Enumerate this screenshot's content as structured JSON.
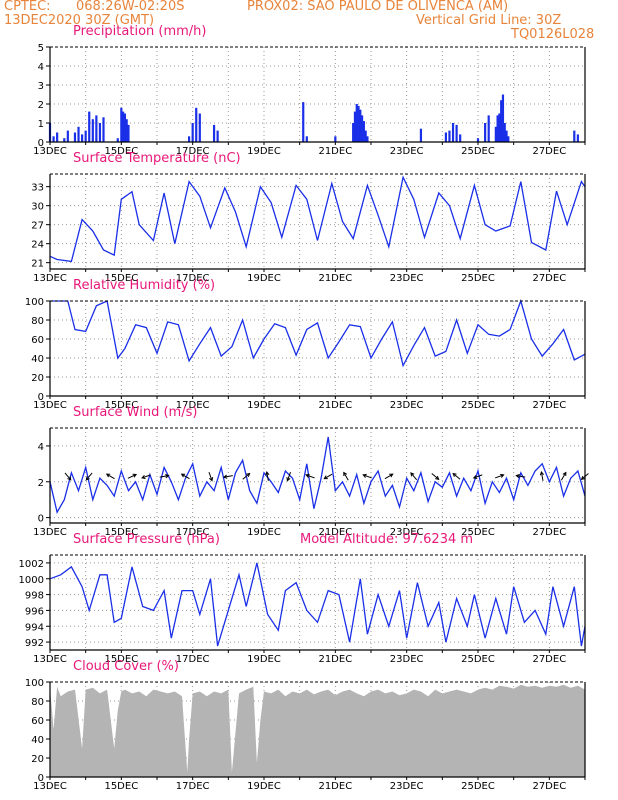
{
  "header": {
    "line1_left": "CPTEC:",
    "line1_coords": "068:26W-02:20S",
    "line1_station": "PROX02: SAO PAULO DE OLIVENCA (AM)",
    "line2_left": "13DEC2020 30Z (GMT)",
    "line2_right": "Vertical Grid Line: 30Z",
    "line3_right": "TQ0126L028",
    "model_altitude": "Model Altitude: 97.6234 m"
  },
  "colors": {
    "header": "#e8843a",
    "title": "#e8187a",
    "series": "#1a2fe8",
    "cloud": "#b4b4b4",
    "grid": "#9a9a9a"
  },
  "chart_data": [
    {
      "type": "bar",
      "title": "Precipitation (mm/h)",
      "x_tick_labels": [
        "13DEC",
        "15DEC",
        "17DEC",
        "19DEC",
        "21DEC",
        "23DEC",
        "25DEC",
        "27DEC"
      ],
      "y_tick_labels": [
        "0",
        "1",
        "2",
        "3",
        "4",
        "5"
      ],
      "ylim": [
        0,
        5
      ],
      "day_range": [
        13,
        28
      ],
      "x": [
        13.0,
        13.1,
        13.2,
        13.4,
        13.5,
        13.7,
        13.8,
        13.9,
        14.0,
        14.1,
        14.2,
        14.3,
        14.4,
        14.5,
        14.9,
        15.0,
        15.05,
        15.1,
        15.15,
        15.2,
        16.9,
        17.0,
        17.1,
        17.2,
        17.6,
        17.7,
        20.1,
        20.2,
        21.0,
        21.5,
        21.55,
        21.6,
        21.65,
        21.7,
        21.75,
        21.8,
        21.85,
        21.9,
        23.4,
        24.1,
        24.2,
        24.3,
        24.4,
        24.5,
        25.0,
        25.2,
        25.3,
        25.5,
        25.55,
        25.6,
        25.65,
        25.7,
        25.75,
        25.8,
        25.85,
        27.7,
        27.8
      ],
      "values": [
        1.0,
        0.3,
        0.5,
        0.2,
        0.6,
        0.5,
        0.8,
        0.4,
        0.6,
        1.6,
        1.2,
        1.4,
        1.0,
        1.3,
        0.2,
        1.8,
        1.6,
        1.5,
        1.2,
        0.9,
        0.3,
        1.0,
        1.8,
        1.5,
        0.9,
        0.6,
        2.1,
        0.3,
        0.3,
        1.0,
        1.6,
        2.0,
        1.9,
        1.7,
        1.4,
        1.1,
        0.6,
        0.3,
        0.7,
        0.5,
        0.6,
        1.0,
        0.9,
        0.4,
        0.2,
        1.0,
        1.4,
        0.8,
        1.4,
        1.5,
        2.2,
        2.5,
        1.0,
        0.6,
        0.3,
        0.6,
        0.4
      ]
    },
    {
      "type": "line",
      "title": "Surface Temperature (nC)",
      "x_tick_labels": [
        "13DEC",
        "15DEC",
        "17DEC",
        "19DEC",
        "21DEC",
        "23DEC",
        "25DEC",
        "27DEC"
      ],
      "y_tick_labels": [
        "21",
        "24",
        "27",
        "30",
        "33"
      ],
      "ylim": [
        20,
        35
      ],
      "day_range": [
        13,
        28
      ],
      "x": [
        13.0,
        13.2,
        13.6,
        13.9,
        14.2,
        14.5,
        14.8,
        15.0,
        15.3,
        15.5,
        15.9,
        16.2,
        16.5,
        16.9,
        17.2,
        17.5,
        17.9,
        18.2,
        18.5,
        18.9,
        19.2,
        19.5,
        19.9,
        20.2,
        20.5,
        20.9,
        21.2,
        21.5,
        21.9,
        22.2,
        22.5,
        22.9,
        23.2,
        23.5,
        23.9,
        24.2,
        24.5,
        24.9,
        25.2,
        25.5,
        25.9,
        26.2,
        26.5,
        26.9,
        27.2,
        27.5,
        27.9,
        28.0
      ],
      "values": [
        22.0,
        21.5,
        21.2,
        27.8,
        26.0,
        23.0,
        22.2,
        31.0,
        32.2,
        27.0,
        24.5,
        32.0,
        24.0,
        33.8,
        31.5,
        26.5,
        32.8,
        29.0,
        23.5,
        33.0,
        30.5,
        25.0,
        33.2,
        31.0,
        24.5,
        33.5,
        27.5,
        24.8,
        33.2,
        28.5,
        23.5,
        34.5,
        31.0,
        25.0,
        32.0,
        30.0,
        24.8,
        33.2,
        27.0,
        26.0,
        26.8,
        33.8,
        24.2,
        23.0,
        32.3,
        27.0,
        33.8,
        33.0
      ]
    },
    {
      "type": "line",
      "title": "Relative Humidity (%)",
      "x_tick_labels": [
        "13DEC",
        "15DEC",
        "17DEC",
        "19DEC",
        "21DEC",
        "23DEC",
        "25DEC",
        "27DEC"
      ],
      "y_tick_labels": [
        "0",
        "20",
        "40",
        "60",
        "80",
        "100"
      ],
      "ylim": [
        0,
        100
      ],
      "day_range": [
        13,
        28
      ],
      "x": [
        13.0,
        13.5,
        13.7,
        14.0,
        14.3,
        14.6,
        14.9,
        15.1,
        15.4,
        15.7,
        16.0,
        16.3,
        16.6,
        16.9,
        17.2,
        17.5,
        17.8,
        18.1,
        18.4,
        18.7,
        19.0,
        19.3,
        19.6,
        19.9,
        20.2,
        20.5,
        20.8,
        21.1,
        21.4,
        21.7,
        22.0,
        22.3,
        22.6,
        22.9,
        23.2,
        23.5,
        23.8,
        24.1,
        24.4,
        24.7,
        25.0,
        25.3,
        25.6,
        25.9,
        26.2,
        26.5,
        26.8,
        27.1,
        27.4,
        27.7,
        28.0
      ],
      "values": [
        100,
        100,
        70,
        68,
        95,
        100,
        40,
        50,
        75,
        72,
        45,
        78,
        75,
        37,
        55,
        72,
        42,
        52,
        80,
        40,
        60,
        76,
        72,
        43,
        70,
        77,
        40,
        57,
        75,
        73,
        40,
        60,
        78,
        32,
        53,
        72,
        42,
        47,
        80,
        45,
        75,
        65,
        63,
        70,
        100,
        60,
        42,
        55,
        70,
        38,
        44
      ]
    },
    {
      "type": "line",
      "title": "Surface Wind (m/s)",
      "x_tick_labels": [
        "13DEC",
        "15DEC",
        "17DEC",
        "19DEC",
        "21DEC",
        "23DEC",
        "25DEC",
        "27DEC"
      ],
      "y_tick_labels": [
        "0",
        "2",
        "4"
      ],
      "ylim": [
        -0.3,
        5.0
      ],
      "day_range": [
        13,
        28
      ],
      "x": [
        13.0,
        13.2,
        13.4,
        13.6,
        13.8,
        14.0,
        14.2,
        14.4,
        14.6,
        14.8,
        15.0,
        15.2,
        15.4,
        15.6,
        15.8,
        16.0,
        16.2,
        16.4,
        16.6,
        16.8,
        17.0,
        17.2,
        17.4,
        17.6,
        17.8,
        18.0,
        18.2,
        18.4,
        18.6,
        18.8,
        19.0,
        19.2,
        19.4,
        19.6,
        19.8,
        20.0,
        20.2,
        20.4,
        20.6,
        20.8,
        21.0,
        21.2,
        21.4,
        21.6,
        21.8,
        22.0,
        22.2,
        22.4,
        22.6,
        22.8,
        23.0,
        23.2,
        23.4,
        23.6,
        23.8,
        24.0,
        24.2,
        24.4,
        24.6,
        24.8,
        25.0,
        25.2,
        25.4,
        25.6,
        25.8,
        26.0,
        26.2,
        26.4,
        26.6,
        26.8,
        27.0,
        27.2,
        27.4,
        27.6,
        27.8,
        28.0
      ],
      "values": [
        2.0,
        0.3,
        1.0,
        2.5,
        1.5,
        2.8,
        1.0,
        2.2,
        1.8,
        1.2,
        2.6,
        1.5,
        2.0,
        1.0,
        2.4,
        1.3,
        2.8,
        2.0,
        1.0,
        2.2,
        3.0,
        1.2,
        2.0,
        1.5,
        2.8,
        1.0,
        2.5,
        3.2,
        1.5,
        0.8,
        2.5,
        2.0,
        1.4,
        2.6,
        2.2,
        1.0,
        3.0,
        0.5,
        2.2,
        4.5,
        1.5,
        2.0,
        1.2,
        2.4,
        0.8,
        2.0,
        2.6,
        1.2,
        1.8,
        0.6,
        2.2,
        1.5,
        2.5,
        0.9,
        2.0,
        1.7,
        2.5,
        1.2,
        2.2,
        1.5,
        2.6,
        0.8,
        2.0,
        1.4,
        2.2,
        1.0,
        2.5,
        1.8,
        2.6,
        3.0,
        2.0,
        2.8,
        1.2,
        2.2,
        2.6,
        1.2
      ],
      "vector_days": [
        13.5,
        14.1,
        14.7,
        15.3,
        15.7,
        16.2,
        16.8,
        17.5,
        18.0,
        18.5,
        19.1,
        19.7,
        20.3,
        20.8,
        21.3,
        21.9,
        22.5,
        23.2,
        23.8,
        24.4,
        25.0,
        25.6,
        26.2,
        26.8,
        27.4,
        28.0
      ],
      "vector_angles_deg": [
        -50,
        230,
        150,
        25,
        200,
        10,
        150,
        -70,
        190,
        40,
        100,
        250,
        160,
        210,
        120,
        160,
        30,
        130,
        -40,
        140,
        200,
        20,
        170,
        100,
        60,
        220
      ]
    },
    {
      "type": "line",
      "title": "Surface Pressure (hPa)",
      "x_tick_labels": [
        "13DEC",
        "15DEC",
        "17DEC",
        "19DEC",
        "21DEC",
        "23DEC",
        "25DEC",
        "27DEC"
      ],
      "y_tick_labels": [
        "992",
        "994",
        "996",
        "998",
        "1000",
        "1002"
      ],
      "ylim": [
        991.0,
        1003.0
      ],
      "day_range": [
        13,
        28
      ],
      "x": [
        13.0,
        13.3,
        13.6,
        13.9,
        14.1,
        14.4,
        14.6,
        14.8,
        15.0,
        15.3,
        15.6,
        15.9,
        16.2,
        16.4,
        16.7,
        17.0,
        17.2,
        17.5,
        17.7,
        18.0,
        18.3,
        18.5,
        18.8,
        19.1,
        19.4,
        19.6,
        19.9,
        20.2,
        20.5,
        20.8,
        21.1,
        21.4,
        21.7,
        21.9,
        22.2,
        22.5,
        22.8,
        23.0,
        23.3,
        23.6,
        23.9,
        24.1,
        24.4,
        24.7,
        24.9,
        25.2,
        25.5,
        25.8,
        26.0,
        26.3,
        26.6,
        26.9,
        27.1,
        27.4,
        27.7,
        27.9,
        28.0
      ],
      "values": [
        1000.0,
        1000.5,
        1001.5,
        999.0,
        996.0,
        1000.5,
        1000.5,
        994.5,
        995.0,
        1001.5,
        996.5,
        996.0,
        998.5,
        992.5,
        998.5,
        998.5,
        995.5,
        1000.0,
        991.5,
        996.0,
        1000.5,
        996.5,
        1002.0,
        995.5,
        993.5,
        998.5,
        999.5,
        996.0,
        994.5,
        998.5,
        998.0,
        992.0,
        1000.0,
        993.0,
        998.0,
        994.0,
        998.5,
        992.5,
        999.5,
        994.0,
        997.0,
        992.0,
        997.5,
        994.0,
        998.0,
        992.5,
        997.5,
        993.0,
        999.0,
        994.5,
        996.0,
        993.0,
        999.0,
        994.0,
        999.0,
        991.5,
        994.0
      ]
    },
    {
      "type": "area",
      "title": "Cloud Cover (%)",
      "x_tick_labels": [
        "13DEC",
        "15DEC",
        "17DEC",
        "19DEC",
        "21DEC",
        "23DEC",
        "25DEC",
        "27DEC"
      ],
      "y_tick_labels": [
        "0",
        "20",
        "40",
        "60",
        "80",
        "100"
      ],
      "ylim": [
        0,
        100
      ],
      "day_range": [
        13,
        28
      ],
      "x": [
        13.0,
        13.1,
        13.2,
        13.3,
        13.5,
        13.7,
        13.9,
        14.0,
        14.2,
        14.4,
        14.6,
        14.8,
        14.9,
        15.0,
        15.1,
        15.3,
        15.5,
        15.7,
        15.9,
        16.1,
        16.3,
        16.5,
        16.7,
        16.85,
        16.9,
        17.0,
        17.2,
        17.4,
        17.6,
        17.8,
        18.0,
        18.1,
        18.3,
        18.5,
        18.7,
        18.8,
        18.9,
        19.0,
        19.2,
        19.4,
        19.6,
        19.8,
        20.0,
        20.2,
        20.4,
        20.6,
        20.8,
        21.0,
        21.2,
        21.4,
        21.6,
        21.8,
        22.0,
        22.2,
        22.4,
        22.6,
        22.8,
        23.0,
        23.2,
        23.4,
        23.6,
        23.8,
        24.0,
        24.2,
        24.4,
        24.6,
        24.8,
        25.0,
        25.2,
        25.4,
        25.6,
        25.8,
        26.0,
        26.2,
        26.4,
        26.6,
        26.8,
        27.0,
        27.2,
        27.4,
        27.6,
        27.8,
        28.0
      ],
      "values": [
        95,
        50,
        95,
        85,
        90,
        92,
        30,
        92,
        94,
        88,
        92,
        30,
        70,
        90,
        92,
        88,
        90,
        85,
        92,
        90,
        88,
        90,
        85,
        5,
        40,
        88,
        90,
        85,
        90,
        88,
        92,
        5,
        88,
        92,
        95,
        15,
        60,
        90,
        88,
        92,
        85,
        90,
        88,
        92,
        87,
        90,
        92,
        86,
        90,
        92,
        88,
        85,
        90,
        92,
        88,
        90,
        86,
        88,
        92,
        90,
        85,
        92,
        88,
        90,
        92,
        90,
        88,
        92,
        94,
        92,
        96,
        95,
        93,
        97,
        95,
        96,
        94,
        96,
        95,
        97,
        94,
        96,
        92
      ]
    }
  ]
}
